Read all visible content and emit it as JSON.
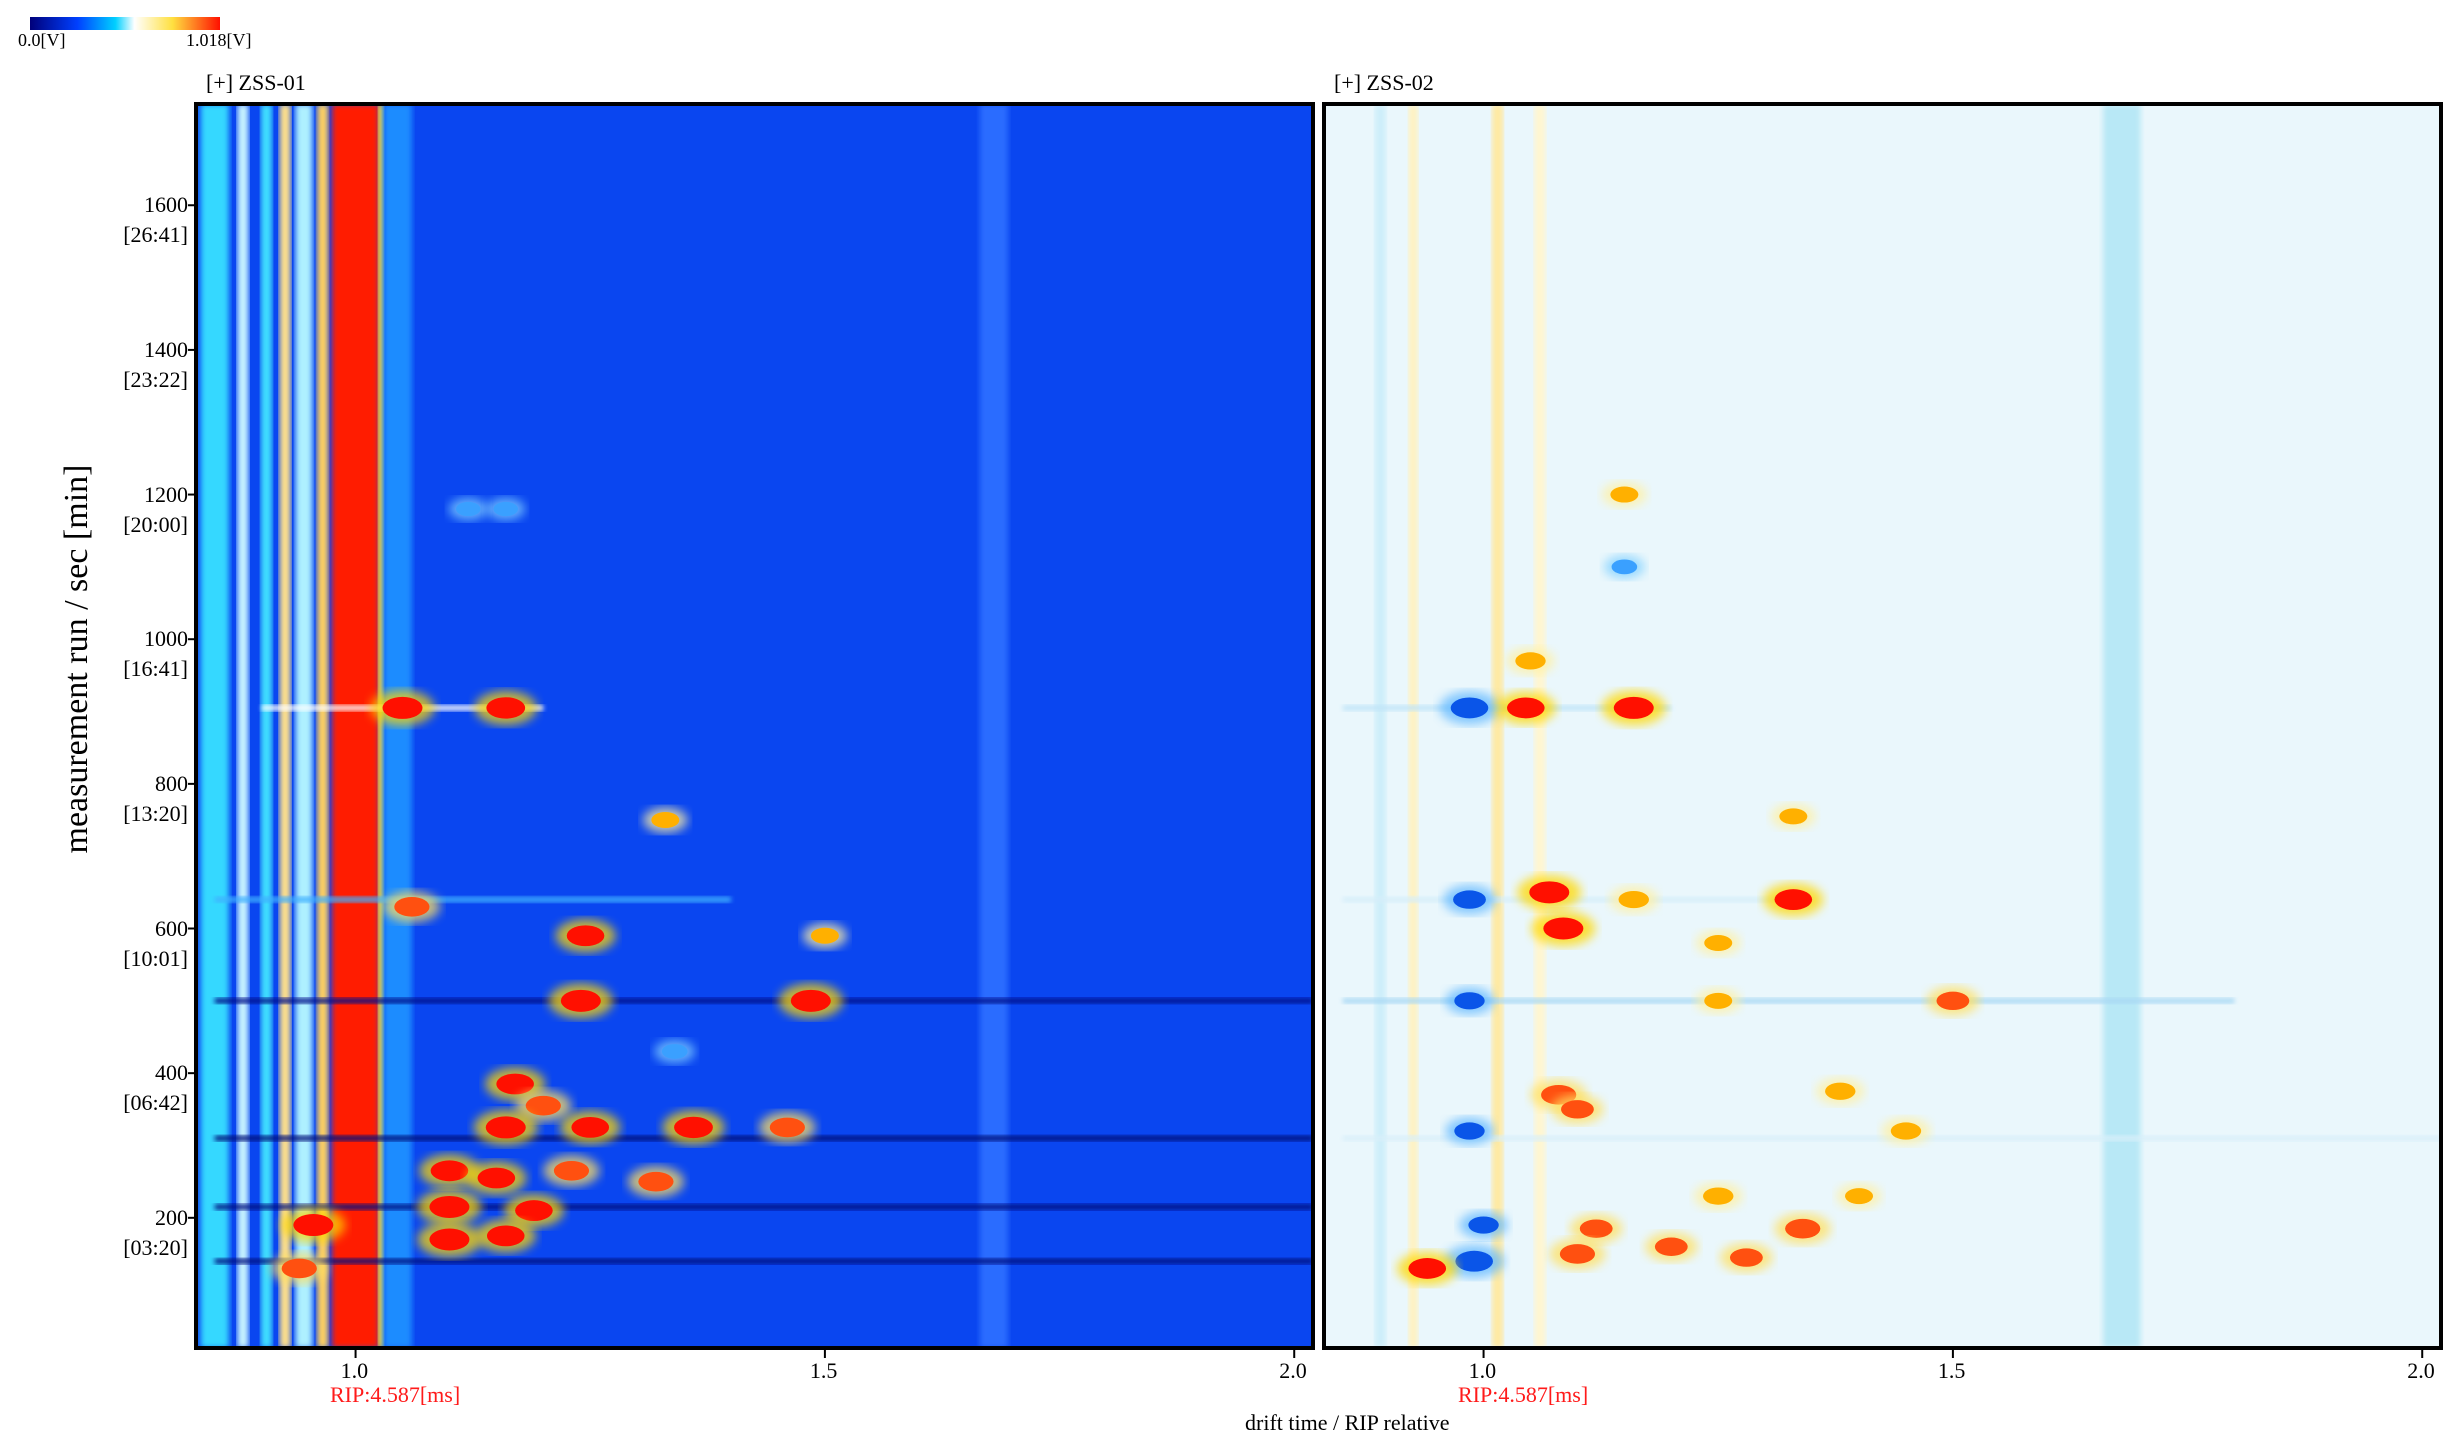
{
  "colorbar": {
    "min_label": "0.0[V]",
    "max_label": "1.018[V]",
    "colors": [
      "#00007a",
      "#0030ff",
      "#00c8ff",
      "#e0f8ff",
      "#ffffff",
      "#fff4b0",
      "#ffb000",
      "#ff2000"
    ]
  },
  "chart_data": [
    {
      "type": "heatmap",
      "panel_title": "[+] ZSS-01",
      "rip_label": "RIP:4.587[ms]",
      "xlabel": "drift time / RIP relative",
      "ylabel": "measurement run / sec [min]",
      "xlim": [
        0.83,
        2.02
      ],
      "ylim": [
        20,
        1740
      ],
      "x_ticks": [
        "1.0",
        "1.5",
        "2.0"
      ],
      "y_ticks": [
        {
          "value": 200,
          "sec": "200",
          "min": "[03:20]"
        },
        {
          "value": 400,
          "sec": "400",
          "min": "[06:42]"
        },
        {
          "value": 600,
          "sec": "600",
          "min": "[10:01]"
        },
        {
          "value": 800,
          "sec": "800",
          "min": "[13:20]"
        },
        {
          "value": 1000,
          "sec": "1000",
          "min": "[16:41]"
        },
        {
          "value": 1200,
          "sec": "1200",
          "min": "[20:00]"
        },
        {
          "value": 1400,
          "sec": "1400",
          "min": "[23:22]"
        },
        {
          "value": 1600,
          "sec": "1600",
          "min": "[26:41]"
        }
      ],
      "background_color": "#0a46f0",
      "vertical_bands": [
        {
          "x": 0.85,
          "width": 0.03,
          "color": "#35d8ff"
        },
        {
          "x": 0.88,
          "width": 0.012,
          "color": "#c8f4ff"
        },
        {
          "x": 0.905,
          "width": 0.012,
          "color": "#40e0ff"
        },
        {
          "x": 0.925,
          "width": 0.012,
          "color": "#ffe08a"
        },
        {
          "x": 0.945,
          "width": 0.018,
          "color": "#aef0ff"
        },
        {
          "x": 0.965,
          "width": 0.012,
          "color": "#ffd060"
        },
        {
          "x": 1.0,
          "width": 0.05,
          "color": "#ff1a00"
        },
        {
          "x": 1.027,
          "width": 0.006,
          "color": "#ffff40"
        },
        {
          "x": 1.045,
          "width": 0.03,
          "color": "#1a8cff"
        },
        {
          "x": 1.68,
          "width": 0.03,
          "color": "#2a6cff"
        }
      ],
      "horizontal_streaks": [
        {
          "y": 905,
          "x0": 0.9,
          "x1": 1.2,
          "color": "#ffffff"
        },
        {
          "y": 640,
          "x0": 0.85,
          "x1": 1.4,
          "color": "#3fb0ff"
        },
        {
          "y": 500,
          "x0": 0.85,
          "x1": 2.02,
          "color": "#00108a"
        },
        {
          "y": 310,
          "x0": 0.85,
          "x1": 2.02,
          "color": "#00107a"
        },
        {
          "y": 215,
          "x0": 0.85,
          "x1": 2.02,
          "color": "#001080"
        },
        {
          "y": 140,
          "x0": 0.85,
          "x1": 2.02,
          "color": "#001080"
        }
      ],
      "peaks": [
        {
          "x": 1.05,
          "y": 905,
          "intensity": 1.0
        },
        {
          "x": 1.16,
          "y": 905,
          "intensity": 0.95
        },
        {
          "x": 1.06,
          "y": 630,
          "intensity": 0.8
        },
        {
          "x": 1.245,
          "y": 590,
          "intensity": 0.9
        },
        {
          "x": 1.24,
          "y": 500,
          "intensity": 1.0
        },
        {
          "x": 1.485,
          "y": 500,
          "intensity": 1.0
        },
        {
          "x": 1.33,
          "y": 750,
          "intensity": 0.5
        },
        {
          "x": 1.5,
          "y": 590,
          "intensity": 0.5
        },
        {
          "x": 1.17,
          "y": 385,
          "intensity": 0.9
        },
        {
          "x": 1.2,
          "y": 355,
          "intensity": 0.8
        },
        {
          "x": 1.16,
          "y": 325,
          "intensity": 1.0
        },
        {
          "x": 1.25,
          "y": 325,
          "intensity": 0.9
        },
        {
          "x": 1.36,
          "y": 325,
          "intensity": 0.95
        },
        {
          "x": 1.46,
          "y": 325,
          "intensity": 0.8
        },
        {
          "x": 1.1,
          "y": 265,
          "intensity": 0.9
        },
        {
          "x": 1.15,
          "y": 255,
          "intensity": 0.9
        },
        {
          "x": 1.23,
          "y": 265,
          "intensity": 0.8
        },
        {
          "x": 1.32,
          "y": 250,
          "intensity": 0.8
        },
        {
          "x": 1.1,
          "y": 215,
          "intensity": 1.0
        },
        {
          "x": 1.19,
          "y": 210,
          "intensity": 0.9
        },
        {
          "x": 1.1,
          "y": 170,
          "intensity": 1.0
        },
        {
          "x": 1.16,
          "y": 175,
          "intensity": 0.9
        },
        {
          "x": 0.955,
          "y": 190,
          "intensity": 1.0
        },
        {
          "x": 0.94,
          "y": 130,
          "intensity": 0.8
        },
        {
          "x": 1.34,
          "y": 430,
          "intensity": 0.4
        },
        {
          "x": 1.12,
          "y": 1180,
          "intensity": 0.35
        },
        {
          "x": 1.16,
          "y": 1180,
          "intensity": 0.35
        }
      ]
    },
    {
      "type": "heatmap",
      "panel_title": "[+] ZSS-02",
      "rip_label": "RIP:4.587[ms]",
      "xlabel": "drift time / RIP relative",
      "ylabel": "measurement run / sec [min]",
      "xlim": [
        0.83,
        2.02
      ],
      "ylim": [
        20,
        1740
      ],
      "x_ticks": [
        "1.0",
        "1.5",
        "2.0"
      ],
      "background_color": "#eaf7fc",
      "vertical_bands": [
        {
          "x": 0.89,
          "width": 0.012,
          "color": "#cdeefa"
        },
        {
          "x": 0.925,
          "width": 0.01,
          "color": "#fff2c0"
        },
        {
          "x": 1.015,
          "width": 0.012,
          "color": "#ffe9a0"
        },
        {
          "x": 1.06,
          "width": 0.012,
          "color": "#fff6d0"
        },
        {
          "x": 1.68,
          "width": 0.04,
          "color": "#b8e8f6"
        }
      ],
      "horizontal_streaks": [
        {
          "y": 905,
          "x0": 0.85,
          "x1": 1.2,
          "color": "#bfe4f8"
        },
        {
          "y": 640,
          "x0": 0.85,
          "x1": 1.35,
          "color": "#d5eefa"
        },
        {
          "y": 500,
          "x0": 0.85,
          "x1": 1.8,
          "color": "#a8d8f4"
        },
        {
          "y": 310,
          "x0": 0.85,
          "x1": 2.02,
          "color": "#d8effa"
        }
      ],
      "peaks": [
        {
          "x": 0.985,
          "y": 905,
          "intensity": -0.9
        },
        {
          "x": 1.045,
          "y": 905,
          "intensity": 0.9
        },
        {
          "x": 1.16,
          "y": 905,
          "intensity": 1.0
        },
        {
          "x": 1.05,
          "y": 970,
          "intensity": 0.6
        },
        {
          "x": 1.15,
          "y": 1200,
          "intensity": 0.5
        },
        {
          "x": 1.15,
          "y": 1100,
          "intensity": 0.4
        },
        {
          "x": 1.07,
          "y": 650,
          "intensity": 1.0
        },
        {
          "x": 1.085,
          "y": 600,
          "intensity": 1.0
        },
        {
          "x": 1.33,
          "y": 640,
          "intensity": 0.9
        },
        {
          "x": 1.16,
          "y": 640,
          "intensity": 0.6
        },
        {
          "x": 0.985,
          "y": 640,
          "intensity": -0.7
        },
        {
          "x": 1.33,
          "y": 755,
          "intensity": 0.5
        },
        {
          "x": 1.25,
          "y": 580,
          "intensity": 0.5
        },
        {
          "x": 1.5,
          "y": 500,
          "intensity": 0.7
        },
        {
          "x": 1.25,
          "y": 500,
          "intensity": 0.5
        },
        {
          "x": 0.985,
          "y": 500,
          "intensity": -0.6
        },
        {
          "x": 1.38,
          "y": 375,
          "intensity": 0.6
        },
        {
          "x": 1.08,
          "y": 370,
          "intensity": 0.8
        },
        {
          "x": 1.1,
          "y": 350,
          "intensity": 0.7
        },
        {
          "x": 1.45,
          "y": 320,
          "intensity": 0.6
        },
        {
          "x": 0.985,
          "y": 320,
          "intensity": -0.6
        },
        {
          "x": 1.25,
          "y": 230,
          "intensity": 0.6
        },
        {
          "x": 1.4,
          "y": 230,
          "intensity": 0.5
        },
        {
          "x": 1.34,
          "y": 185,
          "intensity": 0.8
        },
        {
          "x": 1.12,
          "y": 185,
          "intensity": 0.7
        },
        {
          "x": 1.2,
          "y": 160,
          "intensity": 0.7
        },
        {
          "x": 0.99,
          "y": 140,
          "intensity": -0.9
        },
        {
          "x": 1.1,
          "y": 150,
          "intensity": 0.8
        },
        {
          "x": 0.94,
          "y": 130,
          "intensity": 0.9
        },
        {
          "x": 1.28,
          "y": 145,
          "intensity": 0.7
        },
        {
          "x": 1.0,
          "y": 190,
          "intensity": -0.6
        }
      ]
    }
  ]
}
